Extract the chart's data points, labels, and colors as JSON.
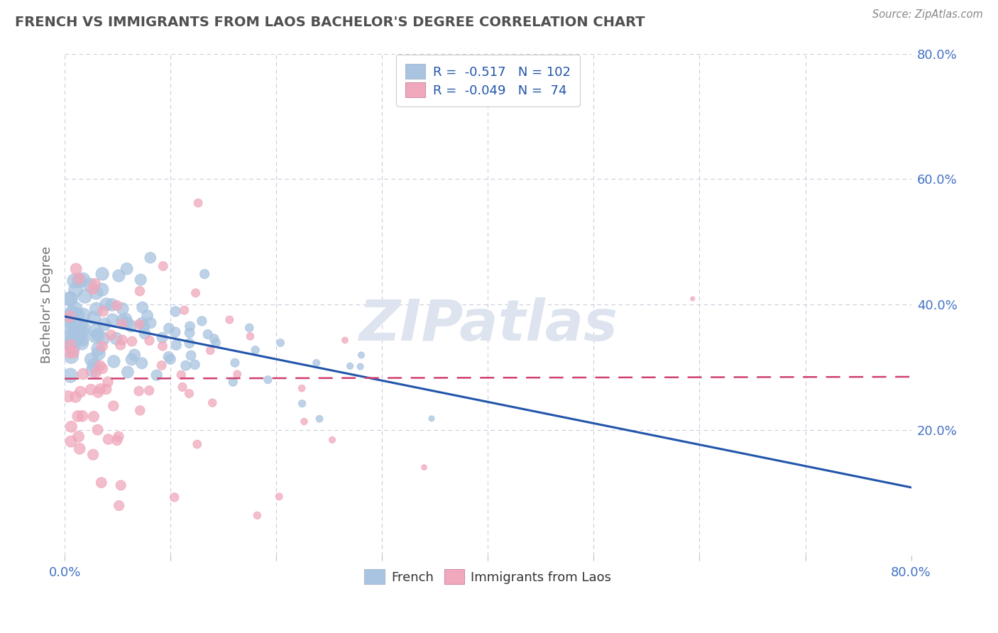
{
  "title": "FRENCH VS IMMIGRANTS FROM LAOS BACHELOR'S DEGREE CORRELATION CHART",
  "source": "Source: ZipAtlas.com",
  "ylabel": "Bachelor's Degree",
  "legend_labels": [
    "R =  -0.517   N = 102",
    "R =  -0.049   N =  74"
  ],
  "bottom_legend_labels": [
    "French",
    "Immigrants from Laos"
  ],
  "french_color": "#a8c4e0",
  "laos_color": "#f0a8bc",
  "french_line_color": "#2255aa",
  "laos_line_color": "#d04070",
  "bg_color": "#ffffff",
  "grid_color": "#ccccdd",
  "title_color": "#505050",
  "axis_label_color": "#4472c4",
  "source_color": "#888888",
  "watermark_color": "#dde4ef",
  "xlim": [
    0.0,
    0.8
  ],
  "ylim": [
    0.0,
    0.8
  ],
  "ytick_vals": [
    0.2,
    0.4,
    0.6,
    0.8
  ],
  "ytick_labels": [
    "20.0%",
    "40.0%",
    "60.0%",
    "80.0%"
  ],
  "xtick_vals": [
    0.0,
    0.1,
    0.2,
    0.3,
    0.4,
    0.5,
    0.6,
    0.7,
    0.8
  ],
  "xtick_edge_labels": [
    "0.0%",
    "80.0%"
  ],
  "french_seed": 42,
  "laos_seed": 77,
  "n_french": 102,
  "n_laos": 74,
  "watermark_text": "ZIPatlas"
}
